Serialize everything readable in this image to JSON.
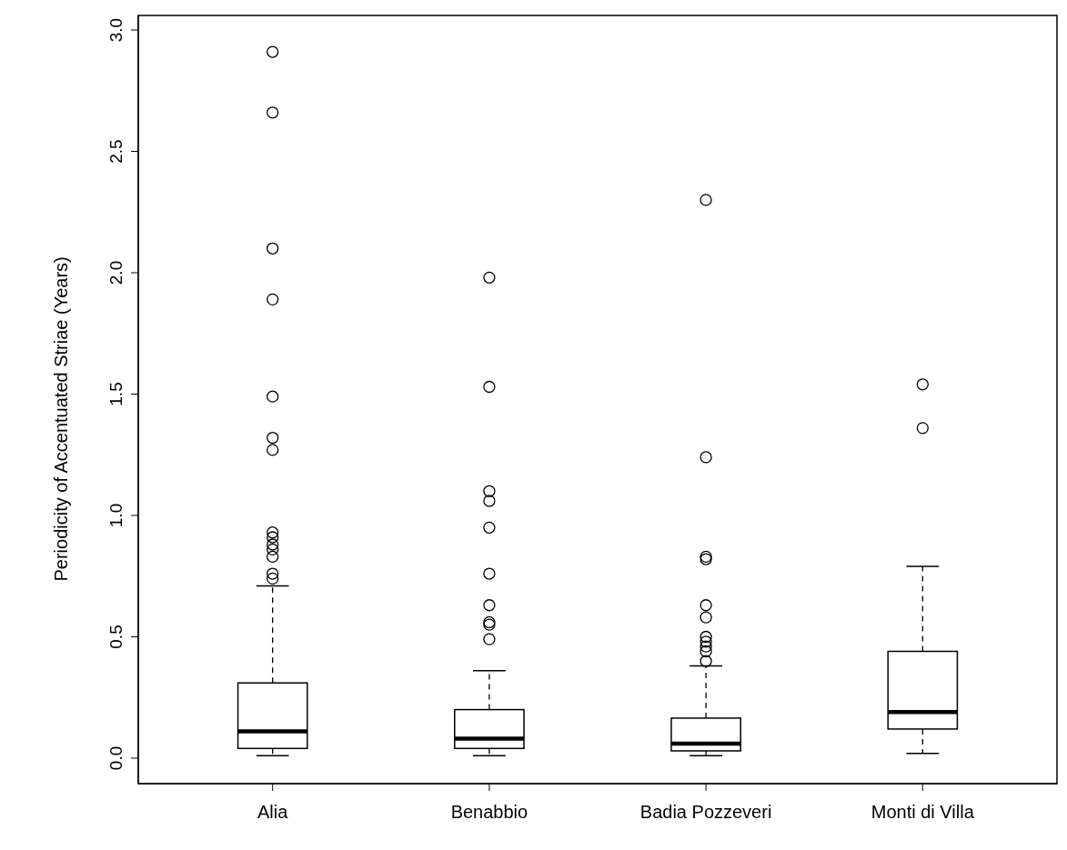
{
  "chart_data": {
    "type": "box",
    "ylabel": "Periodicity of Accentuated Striae (Years)",
    "categories": [
      "Alia",
      "Benabbio",
      "Badia Pozzeveri",
      "Monti di Villa"
    ],
    "ylim": [
      -0.105,
      3.06
    ],
    "yticks": [
      {
        "value": 0,
        "label": "0.0"
      },
      {
        "value": 0.5,
        "label": "0.5"
      },
      {
        "value": 1,
        "label": "1.0"
      },
      {
        "value": 1.5,
        "label": "1.5"
      },
      {
        "value": 2,
        "label": "2.0"
      },
      {
        "value": 2.5,
        "label": "2.5"
      },
      {
        "value": 3,
        "label": "3.0"
      }
    ],
    "marker": "circle",
    "boxes": [
      {
        "low": 0.01,
        "q1": 0.04,
        "median": 0.11,
        "q3": 0.31,
        "high": 0.71,
        "outliers": [
          2.91,
          2.66,
          2.1,
          1.89,
          1.49,
          1.32,
          1.27,
          0.93,
          0.91,
          0.88,
          0.86,
          0.83,
          0.76,
          0.74
        ]
      },
      {
        "low": 0.01,
        "q1": 0.04,
        "median": 0.08,
        "q3": 0.2,
        "high": 0.36,
        "outliers": [
          1.98,
          1.53,
          1.1,
          1.06,
          0.95,
          0.76,
          0.63,
          0.56,
          0.55,
          0.49
        ]
      },
      {
        "low": 0.01,
        "q1": 0.03,
        "median": 0.06,
        "q3": 0.165,
        "high": 0.38,
        "outliers": [
          2.3,
          1.24,
          0.83,
          0.82,
          0.63,
          0.58,
          0.5,
          0.48,
          0.46,
          0.44,
          0.4
        ]
      },
      {
        "low": 0.02,
        "q1": 0.12,
        "median": 0.19,
        "q3": 0.44,
        "high": 0.79,
        "outliers": [
          1.54,
          1.36
        ]
      }
    ]
  }
}
